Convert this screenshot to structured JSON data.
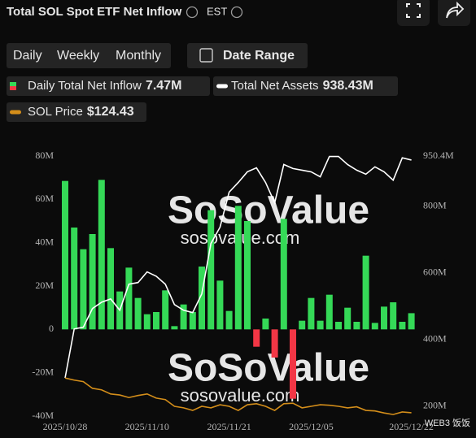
{
  "header": {
    "title": "Total SOL Spot ETF Net Inflow",
    "timezone": "EST"
  },
  "tabs": [
    "Daily",
    "Weekly",
    "Monthly"
  ],
  "date_range": "Date Range",
  "watermark": [
    "SoSoValue",
    "sosovalue.com"
  ],
  "overlay_caption": "WEB3 饭饭",
  "chart_data": {
    "type": "bar",
    "categories": [
      "2025/10/28",
      null,
      null,
      null,
      null,
      null,
      null,
      null,
      null,
      "2025/11/10",
      null,
      null,
      null,
      null,
      null,
      null,
      null,
      null,
      "2025/11/21",
      null,
      null,
      null,
      null,
      null,
      null,
      null,
      null,
      "2025/12/05",
      null,
      null,
      null,
      null,
      null,
      null,
      null,
      null,
      null,
      null,
      "2025/12/22"
    ],
    "series": [
      {
        "name": "Daily Total Net Inflow",
        "legend_value": "7.47M",
        "color": "#35d957",
        "negative_color": "#f23645",
        "values": [
          68.5,
          47,
          37,
          44,
          69,
          37.5,
          17.5,
          28.5,
          14.5,
          7,
          8,
          18,
          1.5,
          11.5,
          8,
          29,
          55,
          22.5,
          8.5,
          57,
          50,
          -8,
          5,
          -13,
          51,
          -32,
          4,
          14.5,
          4,
          16,
          3.5,
          10,
          3.5,
          34,
          3,
          10.5,
          12.5,
          3.5,
          7.47
        ]
      },
      {
        "name": "Total Net Assets",
        "legend_value": "938.43M",
        "color": "#ffffff",
        "axis": "y2",
        "values": [
          285,
          432,
          437,
          493,
          512,
          522,
          488,
          566,
          571,
          603,
          590,
          566,
          505,
          488,
          481,
          537,
          688,
          737,
          842,
          871,
          903,
          915,
          871,
          810,
          925,
          913,
          908,
          903,
          888,
          949,
          949,
          925,
          908,
          896,
          918,
          903,
          878,
          945,
          938.43
        ]
      },
      {
        "name": "SOL Price",
        "legend_value": "$124.43",
        "color": "#d48e1a",
        "axis": "y3",
        "values": [
          192,
          188,
          185,
          172,
          169,
          161,
          159,
          154,
          158,
          161,
          153,
          150,
          137,
          134,
          129,
          137,
          134,
          140,
          137,
          129,
          140,
          142,
          137,
          129,
          142,
          143,
          134,
          137,
          140,
          139,
          137,
          134,
          136,
          129,
          128,
          124,
          121,
          126,
          124.43
        ]
      }
    ],
    "ylim": [
      -40,
      80
    ],
    "yticks": [
      {
        "value": 80,
        "label": "80M"
      },
      {
        "value": 60,
        "label": "60M"
      },
      {
        "value": 40,
        "label": "40M"
      },
      {
        "value": 20,
        "label": "20M"
      },
      0,
      {
        "value": -20,
        "label": "-20M"
      },
      {
        "value": -40,
        "label": "-40M"
      }
    ],
    "y2lim": [
      170.7,
      950.4
    ],
    "y2ticks": [
      {
        "value": 950.4,
        "label": "950.4M"
      },
      {
        "value": 800,
        "label": "800M"
      },
      {
        "value": 600,
        "label": "600M"
      },
      {
        "value": 400,
        "label": "400M"
      },
      {
        "value": 200,
        "label": "200M"
      }
    ],
    "y3lim": [
      118,
      624
    ]
  }
}
